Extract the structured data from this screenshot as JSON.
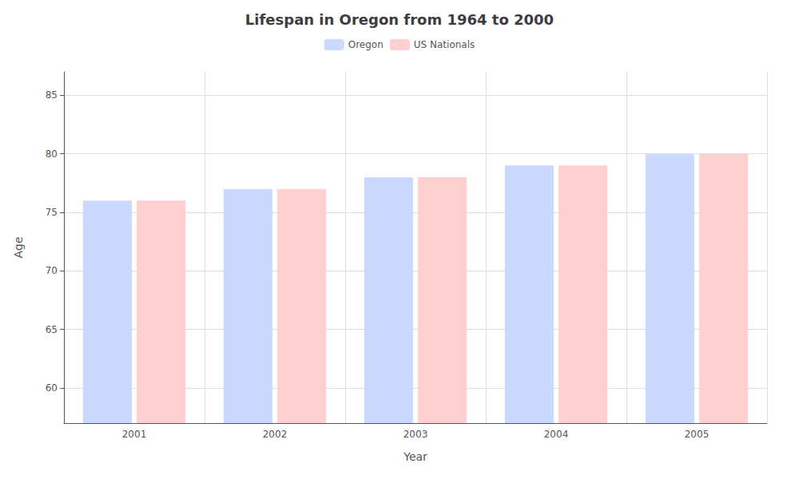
{
  "chart_data": {
    "type": "bar",
    "title": "Lifespan in Oregon from 1964 to 2000",
    "xlabel": "Year",
    "ylabel": "Age",
    "categories": [
      "2001",
      "2002",
      "2003",
      "2004",
      "2005"
    ],
    "series": [
      {
        "name": "Oregon",
        "color": "#ccd9ff",
        "values": [
          76.0,
          77.0,
          78.0,
          79.0,
          80.0
        ]
      },
      {
        "name": "US Nationals",
        "color": "#ffd0d0",
        "values": [
          76.0,
          77.0,
          78.0,
          79.0,
          80.0
        ]
      }
    ],
    "ylim": [
      57,
      87
    ],
    "yticks": [
      60,
      65,
      70,
      75,
      80,
      85
    ],
    "grid": true,
    "legend": "upper center"
  }
}
